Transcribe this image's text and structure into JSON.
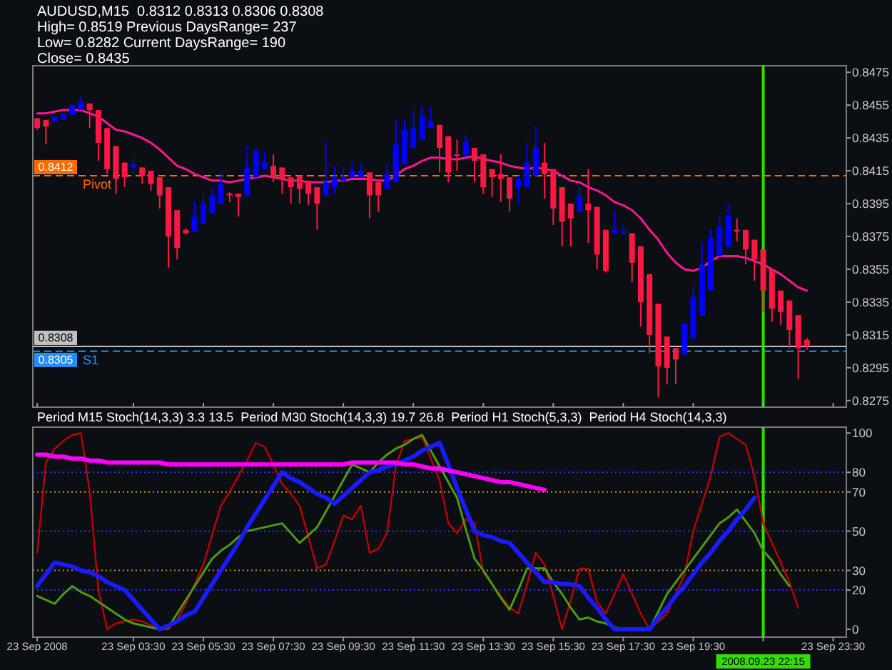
{
  "chart_data": [
    {
      "type": "candlestick",
      "title": "AUDUSD,M15  0.8312 0.8313 0.8306 0.8308",
      "annotations": [
        "High= 0.8519 Previous DaysRange= 237",
        "Low= 0.8282 Current DaysRange= 190",
        "Close= 0.8435",
        {
          "text": "0.8412",
          "y": 0.8412
        },
        {
          "text": "0.8308",
          "y": 0.8308
        },
        {
          "text": "0.8305",
          "y": 0.8305
        }
      ],
      "categories": [
        "23 Sep 2008",
        null,
        null,
        null,
        null,
        null,
        null,
        null,
        null,
        null,
        null,
        "23 Sep 03:30",
        null,
        null,
        null,
        null,
        null,
        null,
        null,
        "23 Sep 05:30",
        null,
        null,
        null,
        null,
        null,
        null,
        null,
        "23 Sep 07:30",
        null,
        null,
        null,
        null,
        null,
        null,
        null,
        "23 Sep 09:30",
        null,
        null,
        null,
        null,
        null,
        null,
        null,
        "23 Sep 11:30",
        null,
        null,
        null,
        null,
        null,
        null,
        null,
        "23 Sep 13:30",
        null,
        null,
        null,
        null,
        null,
        null,
        null,
        "23 Sep 15:30",
        null,
        null,
        null,
        null,
        null,
        null,
        null,
        "23 Sep 17:30",
        null,
        null,
        null,
        null,
        null,
        null,
        null,
        "23 Sep 19:30",
        null,
        null,
        null,
        null,
        null,
        null,
        null,
        "2008.09.23 22:15",
        null,
        null,
        null,
        null,
        null,
        null,
        null,
        "23 Sep 23:30",
        null
      ],
      "tick_labels": "y",
      "ylim": [
        0.8271,
        0.8479
      ],
      "yticks": [
        0.8275,
        0.8295,
        0.8315,
        0.8335,
        0.8355,
        0.8375,
        0.8395,
        0.8415,
        0.8435,
        0.8455,
        0.8475
      ],
      "ohlc": [
        [
          0.8447,
          0.8447,
          0.844,
          0.8441
        ],
        [
          0.8446,
          0.8446,
          0.8431,
          0.8442
        ],
        [
          0.8445,
          0.8448,
          0.8445,
          0.8448
        ],
        [
          0.8446,
          0.845,
          0.8446,
          0.845
        ],
        [
          0.8449,
          0.8455,
          0.8449,
          0.8455
        ],
        [
          0.8452,
          0.8461,
          0.8452,
          0.8457
        ],
        [
          0.8456,
          0.8456,
          0.8441,
          0.8452
        ],
        [
          0.8452,
          0.8452,
          0.8421,
          0.8432
        ],
        [
          0.8441,
          0.8441,
          0.8413,
          0.8416
        ],
        [
          0.843,
          0.843,
          0.8401,
          0.841
        ],
        [
          0.842,
          0.842,
          0.8405,
          0.8411
        ],
        [
          0.8417,
          0.8423,
          0.8414,
          0.8419
        ],
        [
          0.8417,
          0.8417,
          0.8407,
          0.8412
        ],
        [
          0.8415,
          0.8415,
          0.8403,
          0.8407
        ],
        [
          0.8411,
          0.8411,
          0.8392,
          0.84
        ],
        [
          0.8405,
          0.8405,
          0.8356,
          0.8375
        ],
        [
          0.8391,
          0.8391,
          0.8361,
          0.8368
        ],
        [
          0.8379,
          0.838,
          0.8376,
          0.8377
        ],
        [
          0.8378,
          0.8396,
          0.8378,
          0.8387
        ],
        [
          0.8383,
          0.8401,
          0.8383,
          0.8395
        ],
        [
          0.8389,
          0.8405,
          0.8389,
          0.84
        ],
        [
          0.8395,
          0.8414,
          0.8395,
          0.8407
        ],
        [
          0.8401,
          0.8402,
          0.8396,
          0.84
        ],
        [
          0.8401,
          0.8401,
          0.8387,
          0.8399
        ],
        [
          0.84,
          0.843,
          0.84,
          0.8417
        ],
        [
          0.8411,
          0.8429,
          0.8411,
          0.8427
        ],
        [
          0.8416,
          0.8427,
          0.8416,
          0.842
        ],
        [
          0.8418,
          0.8425,
          0.8408,
          0.8411
        ],
        [
          0.8417,
          0.8417,
          0.8401,
          0.841
        ],
        [
          0.8411,
          0.8411,
          0.8395,
          0.8405
        ],
        [
          0.8412,
          0.8412,
          0.8395,
          0.8404
        ],
        [
          0.8409,
          0.8409,
          0.8394,
          0.8401
        ],
        [
          0.8405,
          0.8405,
          0.8379,
          0.8395
        ],
        [
          0.84,
          0.8433,
          0.84,
          0.8408
        ],
        [
          0.8405,
          0.8418,
          0.8401,
          0.8411
        ],
        [
          0.8409,
          0.8418,
          0.8409,
          0.8411
        ],
        [
          0.8411,
          0.8421,
          0.8411,
          0.8415
        ],
        [
          0.8411,
          0.842,
          0.8411,
          0.8415
        ],
        [
          0.8414,
          0.8414,
          0.8386,
          0.84
        ],
        [
          0.8408,
          0.8408,
          0.839,
          0.84
        ],
        [
          0.8404,
          0.8419,
          0.8404,
          0.8413
        ],
        [
          0.8408,
          0.8446,
          0.8408,
          0.8431
        ],
        [
          0.8419,
          0.8446,
          0.8419,
          0.844
        ],
        [
          0.8429,
          0.8452,
          0.8429,
          0.8441
        ],
        [
          0.8434,
          0.8455,
          0.8434,
          0.8449
        ],
        [
          0.8441,
          0.8454,
          0.8441,
          0.8445
        ],
        [
          0.8443,
          0.8443,
          0.8414,
          0.8429
        ],
        [
          0.8436,
          0.8436,
          0.8408,
          0.8414
        ],
        [
          0.8425,
          0.8434,
          0.8415,
          0.8424
        ],
        [
          0.8424,
          0.8437,
          0.8424,
          0.8433
        ],
        [
          0.8429,
          0.8429,
          0.8408,
          0.8421
        ],
        [
          0.8425,
          0.8425,
          0.8401,
          0.8405
        ],
        [
          0.8416,
          0.8416,
          0.8399,
          0.8411
        ],
        [
          0.8413,
          0.8425,
          0.8396,
          0.841
        ],
        [
          0.8411,
          0.8411,
          0.839,
          0.8398
        ],
        [
          0.8405,
          0.8412,
          0.8395,
          0.841
        ],
        [
          0.8405,
          0.8432,
          0.8405,
          0.842
        ],
        [
          0.8412,
          0.8442,
          0.8412,
          0.8429
        ],
        [
          0.842,
          0.8432,
          0.8398,
          0.8413
        ],
        [
          0.8416,
          0.8416,
          0.8382,
          0.8392
        ],
        [
          0.8405,
          0.8405,
          0.8369,
          0.8384
        ],
        [
          0.8395,
          0.8395,
          0.8369,
          0.8386
        ],
        [
          0.839,
          0.8405,
          0.839,
          0.84
        ],
        [
          0.8395,
          0.8416,
          0.8371,
          0.8391
        ],
        [
          0.8393,
          0.8393,
          0.8355,
          0.8364
        ],
        [
          0.8379,
          0.8379,
          0.8353,
          0.8354
        ],
        [
          0.8377,
          0.839,
          0.8376,
          0.8379
        ],
        [
          0.8377,
          0.8383,
          0.8376,
          0.8378
        ],
        [
          0.8377,
          0.8377,
          0.8347,
          0.8359
        ],
        [
          0.8369,
          0.8369,
          0.832,
          0.8335
        ],
        [
          0.8352,
          0.8352,
          0.8304,
          0.8315
        ],
        [
          0.8334,
          0.8334,
          0.8277,
          0.8296
        ],
        [
          0.8314,
          0.8314,
          0.8285,
          0.8295
        ],
        [
          0.8307,
          0.8307,
          0.8285,
          0.83
        ],
        [
          0.8303,
          0.8322,
          0.8303,
          0.8322
        ],
        [
          0.8313,
          0.8345,
          0.8313,
          0.8338
        ],
        [
          0.8327,
          0.8372,
          0.8327,
          0.8358
        ],
        [
          0.8342,
          0.8379,
          0.8342,
          0.8374
        ],
        [
          0.8363,
          0.8387,
          0.8363,
          0.8381
        ],
        [
          0.8369,
          0.8395,
          0.8369,
          0.8388
        ],
        [
          0.8379,
          0.8386,
          0.8372,
          0.8378
        ],
        [
          0.8379,
          0.8379,
          0.8358,
          0.8367
        ],
        [
          0.8373,
          0.8373,
          0.8348,
          0.8361
        ],
        [
          0.8367,
          0.8367,
          0.8329,
          0.8342
        ],
        [
          0.8355,
          0.8355,
          0.8323,
          0.8331
        ],
        [
          0.8342,
          0.8342,
          0.8321,
          0.8329
        ],
        [
          0.8336,
          0.8336,
          0.8307,
          0.8318
        ],
        [
          0.8327,
          0.8327,
          0.8288,
          0.8307
        ],
        [
          0.8312,
          0.8313,
          0.8306,
          0.8308
        ],
        null,
        null,
        null,
        null
      ],
      "series": [
        {
          "type": "line",
          "color": "#ff1493",
          "values": [
            0.845,
            0.845,
            0.8451,
            0.8452,
            0.8452,
            0.8452,
            0.845,
            0.8448,
            0.8444,
            0.844,
            0.8439,
            0.8437,
            0.8435,
            0.8432,
            0.8428,
            0.8423,
            0.8418,
            0.8416,
            0.8413,
            0.8411,
            0.8409,
            0.8409,
            0.8408,
            0.8409,
            0.841,
            0.8411,
            0.8412,
            0.8411,
            0.841,
            0.8409,
            0.8409,
            0.8408,
            0.8408,
            0.8408,
            0.8409,
            0.8409,
            0.841,
            0.841,
            0.841,
            0.8409,
            0.8409,
            0.8412,
            0.8416,
            0.8418,
            0.8421,
            0.8423,
            0.8423,
            0.8422,
            0.8422,
            0.8423,
            0.8424,
            0.8422,
            0.8421,
            0.842,
            0.8418,
            0.8417,
            0.8416,
            0.8417,
            0.8416,
            0.8415,
            0.8412,
            0.8409,
            0.8408,
            0.8405,
            0.8403,
            0.84,
            0.8396,
            0.8394,
            0.8391,
            0.8386,
            0.8379,
            0.8373,
            0.8365,
            0.8359,
            0.8355,
            0.8354,
            0.8356,
            0.836,
            0.8363,
            0.8363,
            0.8363,
            0.8362,
            0.836,
            0.8358,
            0.8355,
            0.8352,
            0.8348,
            0.8344,
            0.8342,
            null,
            null,
            null,
            null
          ]
        }
      ],
      "ref_lines": [
        {
          "axis": "y",
          "value": 0.8412,
          "label": "Pivot",
          "color": "#ff6a00",
          "line_style": "dashed"
        },
        {
          "axis": "y",
          "value": 0.8308,
          "color": "#c0c0c0"
        },
        {
          "axis": "y",
          "value": 0.8305,
          "label": "S1",
          "color": "#1e90ff",
          "line_style": "dashed"
        },
        {
          "axis": "x",
          "value": "2008.09.23 22:15",
          "color": "#33dd00"
        }
      ]
    },
    {
      "type": "line",
      "title": "Period M15 Stoch(14,3,3) 3.3 13.5  Period M30 Stoch(14,3,3) 19.7 26.8  Period H1 Stoch(5,3,3)  Period H4 Stoch(14,3,3)",
      "categories": [
        "23 Sep 2008",
        null,
        null,
        null,
        null,
        null,
        null,
        null,
        null,
        null,
        null,
        "23 Sep 03:30",
        null,
        null,
        null,
        null,
        null,
        null,
        null,
        "23 Sep 05:30",
        null,
        null,
        null,
        null,
        null,
        null,
        null,
        "23 Sep 07:30",
        null,
        null,
        null,
        null,
        null,
        null,
        null,
        "23 Sep 09:30",
        null,
        null,
        null,
        null,
        null,
        null,
        null,
        "23 Sep 11:30",
        null,
        null,
        null,
        null,
        null,
        null,
        null,
        "23 Sep 13:30",
        null,
        null,
        null,
        null,
        null,
        null,
        null,
        "23 Sep 15:30",
        null,
        null,
        null,
        null,
        null,
        null,
        null,
        "23 Sep 17:30",
        null,
        null,
        null,
        null,
        null,
        null,
        null,
        "23 Sep 19:30",
        null,
        null,
        null,
        null,
        null,
        null,
        null,
        "2008.09.23 22:15",
        null,
        null,
        null,
        null,
        null,
        null,
        null,
        "23 Sep 23:30",
        null
      ],
      "ylim": [
        -4,
        103
      ],
      "yticks": [
        0,
        20,
        30,
        50,
        70,
        80,
        100
      ],
      "series": [
        {
          "color": "#c00000",
          "values": [
            39,
            85,
            92,
            96,
            99,
            100,
            70,
            20,
            0,
            3,
            4,
            5,
            4,
            2,
            0,
            0,
            5,
            13,
            23,
            33,
            48,
            63,
            70,
            78,
            86,
            95,
            93,
            84,
            74,
            69,
            63,
            47,
            31,
            33,
            45,
            58,
            56,
            63,
            39,
            41,
            49,
            83,
            96,
            97,
            98,
            87,
            76,
            54,
            49,
            56,
            54,
            29,
            23,
            17,
            11,
            8,
            23,
            39,
            33,
            17,
            0,
            15,
            31,
            31,
            14,
            8,
            18,
            28,
            18,
            8,
            0,
            4,
            8,
            18,
            28,
            50,
            64,
            78,
            98,
            100,
            97,
            94,
            78,
            54,
            44,
            34,
            24,
            11,
            null,
            null,
            null,
            null,
            null
          ]
        },
        {
          "color": "#4c9a10",
          "values": [
            17,
            15,
            13,
            18,
            22,
            19,
            17,
            14,
            11,
            8,
            5,
            3,
            2,
            1,
            0,
            1,
            8,
            15,
            22,
            29,
            36,
            40,
            43,
            47,
            50,
            51,
            52,
            53,
            54,
            49,
            44,
            48,
            52,
            60,
            68,
            76,
            84,
            82,
            80,
            85,
            89,
            92,
            94,
            97,
            99,
            91,
            83,
            75,
            67,
            51,
            36,
            30,
            23,
            16,
            10,
            20,
            31,
            31,
            31,
            24,
            18,
            11,
            5,
            6,
            4,
            3,
            1,
            0,
            0,
            0,
            0,
            9,
            18,
            24,
            30,
            36,
            42,
            48,
            54,
            57,
            61,
            55,
            49,
            40,
            35,
            28,
            22,
            null,
            null,
            null,
            null,
            null,
            null
          ]
        },
        {
          "color": "#1a1aff",
          "values": [
            22,
            28,
            34,
            33,
            32,
            30,
            29,
            27,
            24,
            22,
            20,
            15,
            10,
            5,
            0,
            2,
            4,
            7,
            9,
            16,
            23,
            30,
            37,
            44,
            52,
            59,
            66,
            73,
            80,
            77,
            75,
            72,
            69,
            67,
            64,
            68,
            72,
            76,
            80,
            81,
            83,
            84,
            86,
            88,
            91,
            93,
            95,
            84,
            72,
            61,
            50,
            48,
            47,
            45,
            44,
            39,
            34,
            29,
            24,
            24,
            23,
            23,
            22,
            16,
            11,
            5,
            0,
            0,
            0,
            0,
            0,
            6,
            11,
            17,
            22,
            28,
            34,
            39,
            45,
            50,
            56,
            61,
            67,
            null,
            null,
            null,
            null,
            null,
            null,
            null,
            null,
            null,
            null
          ]
        },
        {
          "color": "#ff00ff",
          "values": [
            89,
            89,
            88,
            88,
            87,
            87,
            86,
            86,
            85,
            85,
            85,
            85,
            85,
            85,
            85,
            84,
            84,
            84,
            84,
            84,
            84,
            84,
            84,
            84,
            84,
            84,
            84,
            84,
            84,
            84,
            84,
            84,
            84,
            84,
            84,
            84,
            85,
            85,
            85,
            85,
            85,
            85,
            84,
            84,
            83,
            82,
            82,
            81,
            80,
            79,
            78,
            77,
            76,
            75,
            75,
            74,
            73,
            72,
            71,
            null,
            null,
            null,
            null,
            null,
            null,
            null,
            null,
            null,
            null,
            null,
            null,
            null,
            null,
            null,
            null,
            null,
            null,
            null,
            null,
            null,
            null,
            null,
            null,
            null,
            null,
            null,
            null,
            null,
            null,
            null,
            null,
            null,
            null
          ]
        }
      ],
      "ref_lines": [
        {
          "axis": "y",
          "value": 20,
          "color": "#3030ff",
          "line_style": "dotted"
        },
        {
          "axis": "y",
          "value": 30,
          "color": "#c89600",
          "line_style": "dotted"
        },
        {
          "axis": "y",
          "value": 50,
          "color": "#3030ff",
          "line_style": "dotted"
        },
        {
          "axis": "y",
          "value": 70,
          "color": "#c89600",
          "line_style": "dotted"
        },
        {
          "axis": "y",
          "value": 80,
          "color": "#3030ff",
          "line_style": "dotted"
        },
        {
          "axis": "x",
          "value": "2008.09.23 22:15",
          "color": "#33dd00"
        }
      ]
    }
  ]
}
